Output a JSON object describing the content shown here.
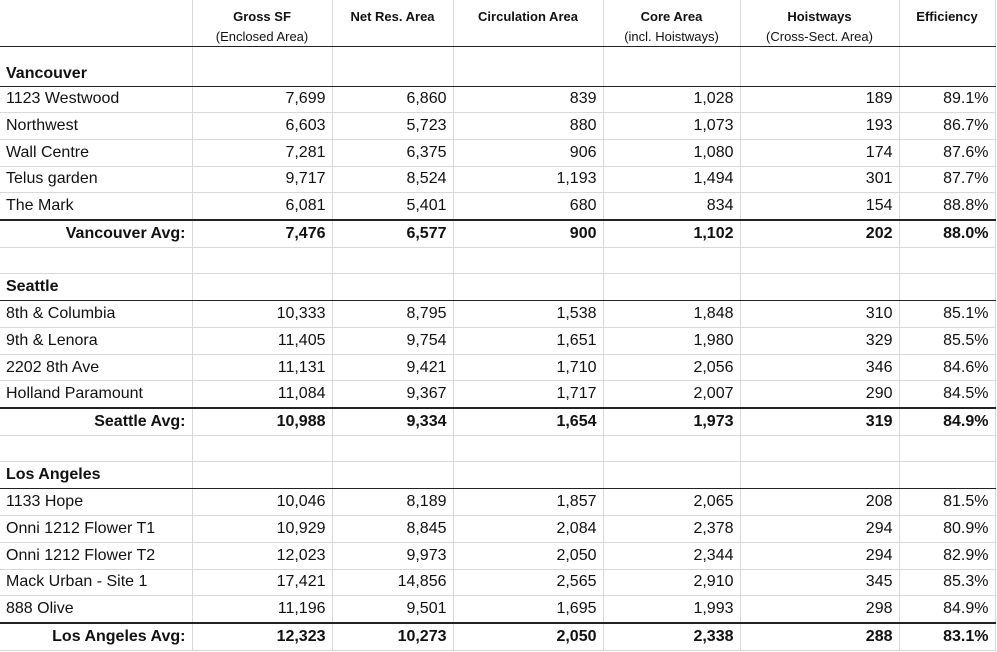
{
  "header": {
    "columns": [
      {
        "title": "Gross SF",
        "subtitle": "(Enclosed Area)"
      },
      {
        "title": "Net Res. Area"
      },
      {
        "title": "Circulation Area"
      },
      {
        "title": "Core Area",
        "subtitle": "(incl. Hoistways)"
      },
      {
        "title": "Hoistways",
        "subtitle": "(Cross-Sect. Area)"
      },
      {
        "title": "Efficiency"
      }
    ]
  },
  "groups": [
    {
      "name": "Vancouver",
      "rows": [
        [
          "1123 Westwood",
          "7,699",
          "6,860",
          "839",
          "1,028",
          "189",
          "89.1%"
        ],
        [
          "Northwest",
          "6,603",
          "5,723",
          "880",
          "1,073",
          "193",
          "86.7%"
        ],
        [
          "Wall Centre",
          "7,281",
          "6,375",
          "906",
          "1,080",
          "174",
          "87.6%"
        ],
        [
          "Telus garden",
          "9,717",
          "8,524",
          "1,193",
          "1,494",
          "301",
          "87.7%"
        ],
        [
          "The Mark",
          "6,081",
          "5,401",
          "680",
          "834",
          "154",
          "88.8%"
        ]
      ],
      "avg": [
        "Vancouver Avg:",
        "7,476",
        "6,577",
        "900",
        "1,102",
        "202",
        "88.0%"
      ]
    },
    {
      "name": "Seattle",
      "rows": [
        [
          "8th & Columbia",
          "10,333",
          "8,795",
          "1,538",
          "1,848",
          "310",
          "85.1%"
        ],
        [
          "9th & Lenora",
          "11,405",
          "9,754",
          "1,651",
          "1,980",
          "329",
          "85.5%"
        ],
        [
          "2202 8th Ave",
          "11,131",
          "9,421",
          "1,710",
          "2,056",
          "346",
          "84.6%"
        ],
        [
          "Holland Paramount",
          "11,084",
          "9,367",
          "1,717",
          "2,007",
          "290",
          "84.5%"
        ]
      ],
      "avg": [
        "Seattle Avg:",
        "10,988",
        "9,334",
        "1,654",
        "1,973",
        "319",
        "84.9%"
      ]
    },
    {
      "name": "Los Angeles",
      "rows": [
        [
          "1133 Hope",
          "10,046",
          "8,189",
          "1,857",
          "2,065",
          "208",
          "81.5%"
        ],
        [
          "Onni 1212 Flower T1",
          "10,929",
          "8,845",
          "2,084",
          "2,378",
          "294",
          "80.9%"
        ],
        [
          "Onni 1212 Flower T2",
          "12,023",
          "9,973",
          "2,050",
          "2,344",
          "294",
          "82.9%"
        ],
        [
          "Mack Urban - Site 1",
          "17,421",
          "14,856",
          "2,565",
          "2,910",
          "345",
          "85.3%"
        ],
        [
          "888 Olive",
          "11,196",
          "9,501",
          "1,695",
          "1,993",
          "298",
          "84.9%"
        ]
      ],
      "avg": [
        "Los Angeles Avg:",
        "12,323",
        "10,273",
        "2,050",
        "2,338",
        "288",
        "83.1%"
      ]
    }
  ]
}
